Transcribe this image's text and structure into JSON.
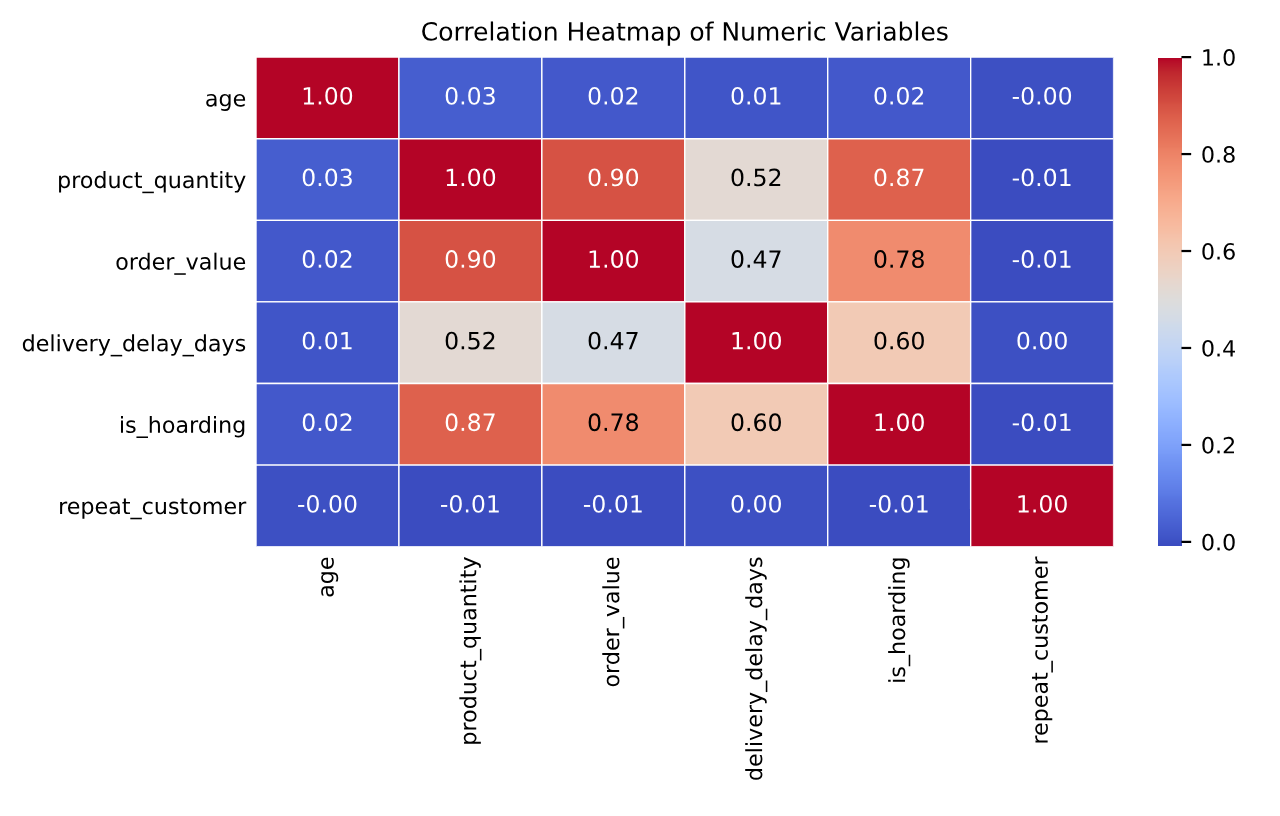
{
  "chart_data": {
    "type": "heatmap",
    "title": "Correlation Heatmap of Numeric Variables",
    "categories": [
      "age",
      "product_quantity",
      "order_value",
      "delivery_delay_days",
      "is_hoarding",
      "repeat_customer"
    ],
    "y_categories": [
      "age",
      "product_quantity",
      "order_value",
      "delivery_delay_days",
      "is_hoarding",
      "repeat_customer"
    ],
    "cells": [
      [
        1.0,
        0.03,
        0.02,
        0.01,
        0.02,
        -0.0
      ],
      [
        0.03,
        1.0,
        0.9,
        0.52,
        0.87,
        -0.01
      ],
      [
        0.02,
        0.9,
        1.0,
        0.47,
        0.78,
        -0.01
      ],
      [
        0.01,
        0.52,
        0.47,
        1.0,
        0.6,
        0.0
      ],
      [
        0.02,
        0.87,
        0.78,
        0.6,
        1.0,
        -0.01
      ],
      [
        -0.0,
        -0.01,
        -0.01,
        0.0,
        -0.01,
        1.0
      ]
    ],
    "cell_labels": [
      [
        "1.00",
        "0.03",
        "0.02",
        "0.01",
        "0.02",
        "-0.00"
      ],
      [
        "0.03",
        "1.00",
        "0.90",
        "0.52",
        "0.87",
        "-0.01"
      ],
      [
        "0.02",
        "0.90",
        "1.00",
        "0.47",
        "0.78",
        "-0.01"
      ],
      [
        "0.01",
        "0.52",
        "0.47",
        "1.00",
        "0.60",
        "0.00"
      ],
      [
        "0.02",
        "0.87",
        "0.78",
        "0.60",
        "1.00",
        "-0.01"
      ],
      [
        "-0.00",
        "-0.01",
        "-0.01",
        "0.00",
        "-0.01",
        "1.00"
      ]
    ],
    "clim": [
      -0.01,
      1.0
    ],
    "cticks": [
      {
        "value": 0,
        "label": "0.0"
      },
      0.2,
      0.4,
      0.6,
      0.8,
      {
        "value": 1,
        "label": "1.0"
      }
    ]
  }
}
